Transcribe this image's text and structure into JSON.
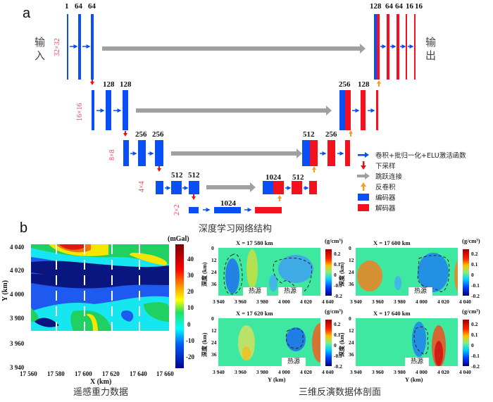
{
  "panel_a": {
    "label": "a",
    "input_label": "输入",
    "output_label": "输出",
    "caption": "深度学习网络结构",
    "levels": [
      "32×32",
      "16×16",
      "8×8",
      "4×4",
      "2×2"
    ],
    "encoder_channels": {
      "level1": [
        "1",
        "64",
        "64"
      ],
      "level2": [
        "128",
        "128"
      ],
      "level3": [
        "256",
        "256"
      ],
      "level4": [
        "512",
        "512"
      ],
      "bottleneck": "1024"
    },
    "decoder_channels": {
      "level1": [
        "128",
        "64",
        "64",
        "16",
        "16"
      ],
      "level2": [
        "256",
        "128"
      ],
      "level3": [
        "512",
        "256"
      ],
      "level4": [
        "1024",
        "512"
      ]
    },
    "legend": [
      {
        "icon": "blue-arrow-icon",
        "label": "卷积+批归一化+ELU激活函数"
      },
      {
        "icon": "red-down-arrow-icon",
        "label": "下采样"
      },
      {
        "icon": "gray-arrow-icon",
        "label": "跳跃连接"
      },
      {
        "icon": "orange-up-arrow-icon",
        "label": "反卷积"
      },
      {
        "icon": "blue-box-icon",
        "label": "编码器"
      },
      {
        "icon": "red-box-icon",
        "label": "解码器"
      }
    ],
    "colors": {
      "encoder": "#0a4ff5",
      "decoder": "#f5101e",
      "skip": "#a0a0a0",
      "downsample": "#f01010",
      "upconv": "#f5a020",
      "level_label": "#e8455c"
    }
  },
  "panel_b": {
    "label": "b",
    "gravity": {
      "caption": "遥感重力数据",
      "xlabel": "X (km)",
      "ylabel": "Y (km)",
      "x_ticks": [
        "17 560",
        "17 580",
        "17 600",
        "17 620",
        "17 640",
        "17 660"
      ],
      "y_ticks": [
        "4 040",
        "4 020",
        "4 000",
        "3 980",
        "3 960",
        "3 940"
      ],
      "colorbar_unit": "(mGal)",
      "colorbar_ticks": [
        "40",
        "30",
        "20",
        "10",
        "0",
        "-10",
        "-20"
      ]
    },
    "inversion": {
      "caption": "三维反演数据体剖面",
      "ylabel": "深度 (km)",
      "xlabel": "Y (km)",
      "x_ticks": [
        "3 940",
        "3 960",
        "3 980",
        "4 000",
        "4 020",
        "4 040"
      ],
      "depth_ticks": [
        "0",
        "12",
        "24",
        "36"
      ],
      "colorbar_unit": "(g/cm³)",
      "colorbar_ticks": [
        "0.2",
        "0.1",
        "0",
        "-0.1",
        "-0.2"
      ],
      "heat_source_label": "热源",
      "sections": [
        {
          "title": "X = 17 580 km"
        },
        {
          "title": "X = 17 600 km"
        },
        {
          "title": "X = 17 620 km"
        },
        {
          "title": "X = 17 640 km"
        }
      ]
    }
  }
}
